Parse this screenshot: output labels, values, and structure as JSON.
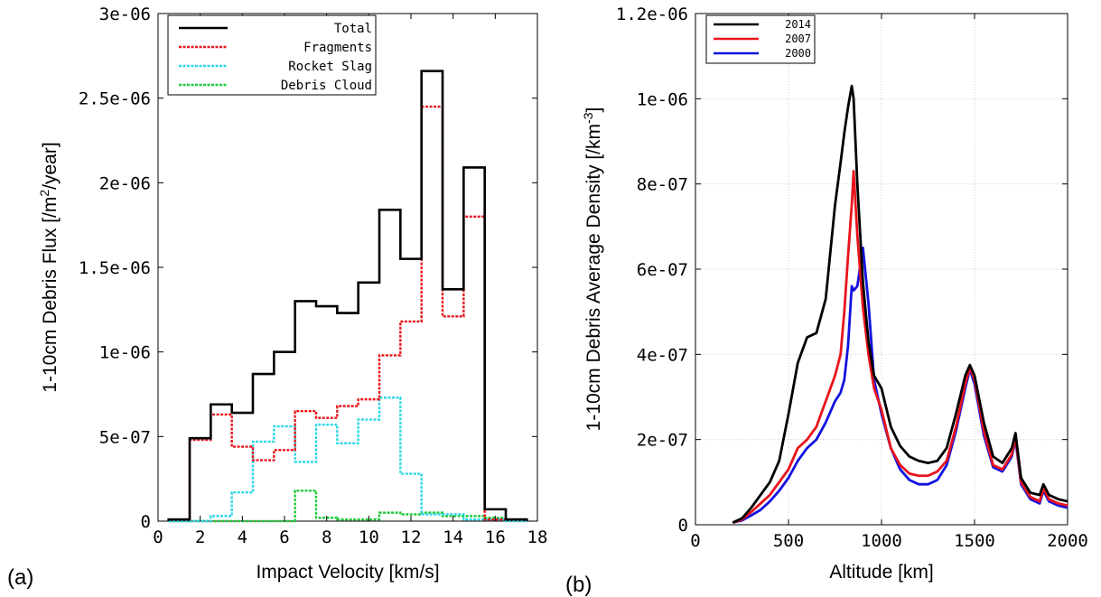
{
  "chart_data": [
    {
      "type": "line",
      "subtype": "step-histogram",
      "panel_label": "(a)",
      "xlabel": "Impact Velocity [km/s]",
      "ylabel_main": "1-10cm Debris Flux [/m",
      "ylabel_sup": "2",
      "ylabel_tail": "/year]",
      "xlim": [
        0,
        18
      ],
      "ylim": [
        0,
        3e-06
      ],
      "xticks": [
        0,
        2,
        4,
        6,
        8,
        10,
        12,
        14,
        16,
        18
      ],
      "xtick_labels": [
        "0",
        "2",
        "4",
        "6",
        "8",
        "10",
        "12",
        "14",
        "16",
        "18"
      ],
      "yticks": [
        0,
        5e-07,
        1e-06,
        1.5e-06,
        2e-06,
        2.5e-06,
        3e-06
      ],
      "ytick_labels": [
        "0",
        "5e-07",
        "1e-06",
        "1.5e-06",
        "2e-06",
        "2.5e-06",
        "3e-06"
      ],
      "grid": false,
      "legend_position": "top-left",
      "bin_edges": [
        0.5,
        1.5,
        2.5,
        3.5,
        4.5,
        5.5,
        6.5,
        7.5,
        8.5,
        9.5,
        10.5,
        11.5,
        12.5,
        13.5,
        14.5,
        15.5,
        16.5,
        17.5
      ],
      "series": [
        {
          "name": "Total",
          "color": "#000000",
          "dash": "",
          "values": [
            1e-08,
            4.9e-07,
            6.9e-07,
            6.4e-07,
            8.7e-07,
            1e-06,
            1.3e-06,
            1.27e-06,
            1.23e-06,
            1.41e-06,
            1.84e-06,
            1.55e-06,
            2.66e-06,
            1.37e-06,
            2.09e-06,
            7e-08,
            1e-08
          ]
        },
        {
          "name": "Fragments",
          "color": "#e8141c",
          "dash": "3,1.5",
          "values": [
            1e-08,
            4.8e-07,
            6.3e-07,
            4.4e-07,
            3.6e-07,
            4.2e-07,
            6.5e-07,
            6.1e-07,
            6.8e-07,
            7.2e-07,
            9.8e-07,
            1.18e-06,
            2.45e-06,
            1.21e-06,
            1.8e-06,
            1e-08,
            1e-08
          ]
        },
        {
          "name": "Rocket Slag",
          "color": "#2ed7e6",
          "dash": "3,1.5",
          "values": [
            0,
            0,
            3e-08,
            1.7e-07,
            4.7e-07,
            5.6e-07,
            3.5e-07,
            5.7e-07,
            4.6e-07,
            6e-07,
            7.3e-07,
            2.8e-07,
            4e-08,
            4e-08,
            1e-08,
            1e-08,
            0
          ]
        },
        {
          "name": "Debris Cloud",
          "color": "#22c93a",
          "dash": "3,1.5",
          "values": [
            0,
            0,
            0,
            0,
            0,
            0,
            1.8e-07,
            2e-08,
            1e-08,
            1e-08,
            5e-08,
            4e-08,
            5e-08,
            3e-08,
            3e-08,
            2e-08,
            1e-08
          ]
        }
      ]
    },
    {
      "type": "line",
      "panel_label": "(b)",
      "xlabel": "Altitude [km]",
      "ylabel_main": "1-10cm Debris Average Density [/km",
      "ylabel_sup": "-3",
      "ylabel_tail": "]",
      "xlim": [
        0,
        2000
      ],
      "ylim": [
        0,
        1.2e-06
      ],
      "xticks": [
        0,
        500,
        1000,
        1500,
        2000
      ],
      "xtick_labels": [
        "0",
        "500",
        "1000",
        "1500",
        "2000"
      ],
      "yticks": [
        0,
        2e-07,
        4e-07,
        6e-07,
        8e-07,
        1e-06,
        1.2e-06
      ],
      "ytick_labels": [
        "0",
        "2e-07",
        "4e-07",
        "6e-07",
        "8e-07",
        "1e-06",
        "1.2e-06"
      ],
      "grid": true,
      "legend_position": "top-left",
      "series": [
        {
          "name": "2014",
          "color": "#000000",
          "x": [
            200,
            250,
            300,
            350,
            400,
            450,
            500,
            550,
            600,
            650,
            700,
            750,
            780,
            800,
            820,
            840,
            850,
            870,
            900,
            930,
            960,
            1000,
            1050,
            1100,
            1150,
            1200,
            1250,
            1300,
            1350,
            1400,
            1450,
            1475,
            1500,
            1550,
            1600,
            1650,
            1700,
            1720,
            1750,
            1800,
            1850,
            1870,
            1900,
            1950,
            2000
          ],
          "y": [
            5e-09,
            1.5e-08,
            4e-08,
            7e-08,
            1e-07,
            1.5e-07,
            2.6e-07,
            3.8e-07,
            4.4e-07,
            4.5e-07,
            5.3e-07,
            7.5e-07,
            8.5e-07,
            9.2e-07,
            9.8e-07,
            1.03e-06,
            1e-06,
            8e-07,
            5.7e-07,
            4.3e-07,
            3.5e-07,
            3.2e-07,
            2.3e-07,
            1.85e-07,
            1.6e-07,
            1.5e-07,
            1.45e-07,
            1.5e-07,
            1.8e-07,
            2.6e-07,
            3.5e-07,
            3.75e-07,
            3.5e-07,
            2.4e-07,
            1.6e-07,
            1.45e-07,
            1.8e-07,
            2.15e-07,
            1.1e-07,
            7.5e-08,
            7e-08,
            9.5e-08,
            7e-08,
            6e-08,
            5.5e-08
          ]
        },
        {
          "name": "2007",
          "color": "#e8141c",
          "x": [
            200,
            250,
            300,
            350,
            400,
            450,
            500,
            550,
            600,
            650,
            700,
            750,
            780,
            800,
            820,
            840,
            850,
            870,
            900,
            930,
            960,
            1000,
            1050,
            1100,
            1150,
            1200,
            1250,
            1300,
            1350,
            1400,
            1450,
            1475,
            1500,
            1550,
            1600,
            1650,
            1700,
            1720,
            1750,
            1800,
            1850,
            1870,
            1900,
            1950,
            2000
          ],
          "y": [
            5e-09,
            1.2e-08,
            3e-08,
            5e-08,
            7e-08,
            1e-07,
            1.3e-07,
            1.8e-07,
            2e-07,
            2.3e-07,
            2.9e-07,
            3.5e-07,
            4e-07,
            5e-07,
            6.3e-07,
            7.5e-07,
            8.3e-07,
            6.8e-07,
            5.1e-07,
            4e-07,
            3.2e-07,
            2.7e-07,
            1.8e-07,
            1.4e-07,
            1.2e-07,
            1.15e-07,
            1.15e-07,
            1.25e-07,
            1.5e-07,
            2.3e-07,
            3.3e-07,
            3.7e-07,
            3.4e-07,
            2.2e-07,
            1.4e-07,
            1.3e-07,
            1.65e-07,
            2.05e-07,
            1e-07,
            6.5e-08,
            5.5e-08,
            8.5e-08,
            6e-08,
            5e-08,
            4.5e-08
          ]
        },
        {
          "name": "2000",
          "color": "#1313e0",
          "x": [
            200,
            250,
            300,
            350,
            400,
            450,
            500,
            550,
            600,
            650,
            700,
            750,
            780,
            800,
            820,
            840,
            850,
            870,
            900,
            930,
            960,
            1000,
            1050,
            1100,
            1150,
            1200,
            1250,
            1300,
            1350,
            1400,
            1450,
            1475,
            1500,
            1550,
            1600,
            1650,
            1700,
            1720,
            1750,
            1800,
            1850,
            1870,
            1900,
            1950,
            2000
          ],
          "y": [
            5e-09,
            1e-08,
            2.2e-08,
            3.5e-08,
            5.5e-08,
            8e-08,
            1.1e-07,
            1.5e-07,
            1.8e-07,
            2e-07,
            2.4e-07,
            2.9e-07,
            3.1e-07,
            3.4e-07,
            4.2e-07,
            5.6e-07,
            5.5e-07,
            5.6e-07,
            6.5e-07,
            5.2e-07,
            3.4e-07,
            2.6e-07,
            1.8e-07,
            1.3e-07,
            1.05e-07,
            9.5e-08,
            9.5e-08,
            1.05e-07,
            1.4e-07,
            2.2e-07,
            3.2e-07,
            3.65e-07,
            3.3e-07,
            2.1e-07,
            1.35e-07,
            1.25e-07,
            1.6e-07,
            2e-07,
            9.5e-08,
            6e-08,
            5e-08,
            8e-08,
            5.5e-08,
            4.5e-08,
            4e-08
          ]
        }
      ]
    }
  ]
}
